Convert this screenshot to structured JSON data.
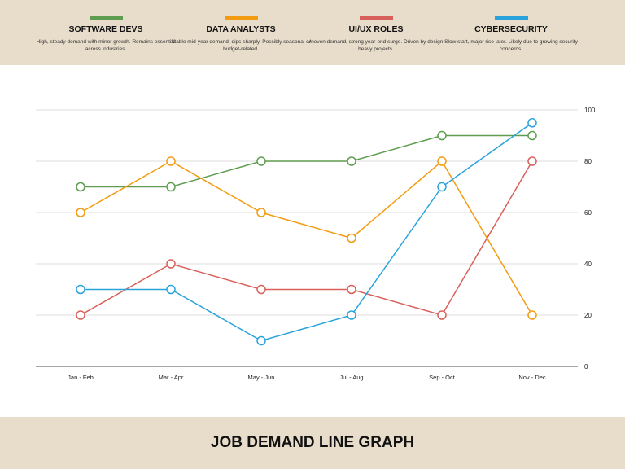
{
  "legend": [
    {
      "name": "SOFTWARE DEVS",
      "desc": "High, steady demand with minor growth. Remains essential across industries.",
      "color": "#5e9c4f"
    },
    {
      "name": "DATA ANALYSTS",
      "desc": "Stable mid-year demand, dips sharply. Possibly seasonal or budget-related.",
      "color": "#f39c12"
    },
    {
      "name": "UI/UX ROLES",
      "desc": "Uneven demand, strong year-end surge. Driven by design-heavy projects.",
      "color": "#d9605a"
    },
    {
      "name": "CYBERSECURITY",
      "desc": "Slow start, major rise later. Likely due to growing security concerns.",
      "color": "#2aa3dc"
    }
  ],
  "chart_data": {
    "type": "line",
    "title": "JOB DEMAND LINE GRAPH",
    "categories": [
      "Jan - Feb",
      "Mar - Apr",
      "May - Jun",
      "Jul - Aug",
      "Sep - Oct",
      "Nov - Dec"
    ],
    "ylim": [
      0,
      100
    ],
    "yticks": [
      0,
      20,
      40,
      60,
      80,
      100
    ],
    "y_axis_side": "right",
    "grid": true,
    "legend_placement": "top",
    "series": [
      {
        "name": "SOFTWARE DEVS",
        "color": "#5e9c4f",
        "values": [
          70,
          70,
          80,
          80,
          90,
          90
        ]
      },
      {
        "name": "DATA ANALYSTS",
        "color": "#f39c12",
        "values": [
          60,
          80,
          60,
          50,
          80,
          20
        ]
      },
      {
        "name": "UI/UX ROLES",
        "color": "#d9605a",
        "values": [
          20,
          40,
          30,
          30,
          20,
          80
        ]
      },
      {
        "name": "CYBERSECURITY",
        "color": "#2aa3dc",
        "values": [
          30,
          30,
          10,
          20,
          70,
          95
        ]
      }
    ]
  }
}
